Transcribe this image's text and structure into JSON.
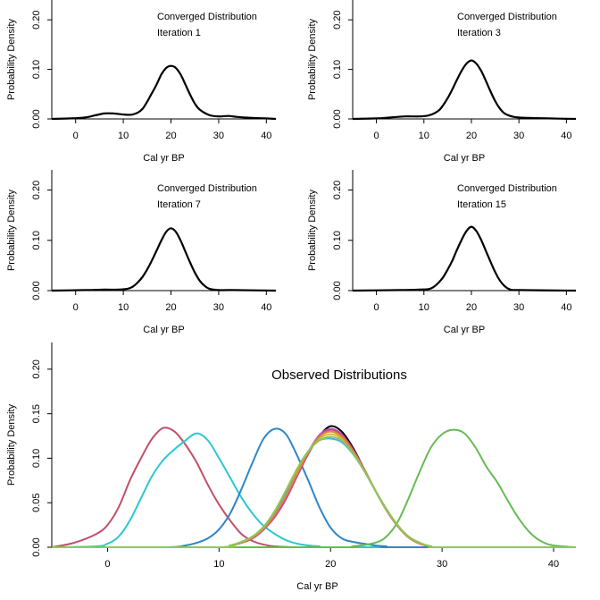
{
  "chart_data": [
    {
      "type": "line",
      "annotation": [
        "Converged Distribution",
        "Iteration 1"
      ],
      "xlabel": "Cal yr BP",
      "ylabel": "Probability Density",
      "xlim": [
        -5,
        42
      ],
      "ylim": [
        0,
        0.24
      ],
      "xticks": [
        "0",
        "10",
        "20",
        "30",
        "40"
      ],
      "yticks": [
        "0.00",
        "0.10",
        "0.20"
      ],
      "series": [
        {
          "color": "#000000",
          "x": [
            -5,
            -1,
            2,
            4,
            6,
            8,
            10,
            12,
            14,
            16,
            17,
            18,
            19,
            20,
            21,
            22,
            23,
            24,
            25,
            26,
            28,
            30,
            32,
            34,
            37,
            40,
            42
          ],
          "y": [
            0,
            0.001,
            0.003,
            0.007,
            0.011,
            0.011,
            0.009,
            0.009,
            0.02,
            0.052,
            0.07,
            0.09,
            0.103,
            0.107,
            0.103,
            0.09,
            0.07,
            0.049,
            0.031,
            0.019,
            0.008,
            0.005,
            0.006,
            0.004,
            0.002,
            0.001,
            0
          ]
        }
      ]
    },
    {
      "type": "line",
      "annotation": [
        "Converged Distribution",
        "Iteration 3"
      ],
      "xlabel": "Cal yr BP",
      "ylabel": "Probability Density",
      "xlim": [
        -5,
        42
      ],
      "ylim": [
        0,
        0.24
      ],
      "xticks": [
        "0",
        "10",
        "20",
        "30",
        "40"
      ],
      "yticks": [
        "0.00",
        "0.10",
        "0.20"
      ],
      "series": [
        {
          "color": "#000000",
          "x": [
            -5,
            0,
            3,
            6,
            9,
            11,
            13,
            14,
            15,
            16,
            17,
            18,
            19,
            20,
            21,
            22,
            23,
            24,
            25,
            26,
            27,
            29,
            32,
            36,
            42
          ],
          "y": [
            0,
            0.001,
            0.003,
            0.005,
            0.005,
            0.007,
            0.016,
            0.027,
            0.042,
            0.06,
            0.08,
            0.098,
            0.112,
            0.118,
            0.112,
            0.098,
            0.078,
            0.056,
            0.036,
            0.021,
            0.011,
            0.004,
            0.002,
            0.001,
            0
          ]
        }
      ]
    },
    {
      "type": "line",
      "annotation": [
        "Converged Distribution",
        "Iteration 7"
      ],
      "xlabel": "Cal yr BP",
      "ylabel": "Probability Density",
      "xlim": [
        -5,
        42
      ],
      "ylim": [
        0,
        0.24
      ],
      "xticks": [
        "0",
        "10",
        "20",
        "30",
        "40"
      ],
      "yticks": [
        "0.00",
        "0.10",
        "0.20"
      ],
      "series": [
        {
          "color": "#000000",
          "x": [
            -5,
            2,
            6,
            9,
            11,
            12,
            13,
            14,
            15,
            16,
            17,
            18,
            19,
            20,
            21,
            22,
            23,
            24,
            25,
            26,
            27,
            28,
            30,
            33,
            42
          ],
          "y": [
            0,
            0.001,
            0.002,
            0.002,
            0.004,
            0.008,
            0.016,
            0.027,
            0.042,
            0.06,
            0.08,
            0.1,
            0.117,
            0.124,
            0.117,
            0.1,
            0.078,
            0.056,
            0.036,
            0.02,
            0.01,
            0.004,
            0.001,
            0.001,
            0
          ]
        }
      ]
    },
    {
      "type": "line",
      "annotation": [
        "Converged Distribution",
        "Iteration 15"
      ],
      "xlabel": "Cal yr BP",
      "ylabel": "Probability Density",
      "xlim": [
        -5,
        42
      ],
      "ylim": [
        0,
        0.24
      ],
      "xticks": [
        "0",
        "10",
        "20",
        "30",
        "40"
      ],
      "yticks": [
        "0.00",
        "0.10",
        "0.20"
      ],
      "series": [
        {
          "color": "#000000",
          "x": [
            -5,
            5,
            9,
            11,
            12,
            13,
            14,
            15,
            16,
            17,
            18,
            19,
            20,
            21,
            22,
            23,
            24,
            25,
            26,
            27,
            28,
            30,
            42
          ],
          "y": [
            0,
            0.001,
            0.002,
            0.003,
            0.007,
            0.015,
            0.026,
            0.042,
            0.06,
            0.082,
            0.102,
            0.119,
            0.127,
            0.119,
            0.102,
            0.08,
            0.058,
            0.037,
            0.02,
            0.009,
            0.003,
            0.001,
            0
          ]
        }
      ]
    },
    {
      "type": "line",
      "annotation": [
        "Observed Distributions"
      ],
      "xlabel": "Cal yr BP",
      "ylabel": "Probability Density",
      "xlim": [
        -5,
        42
      ],
      "ylim": [
        0,
        0.23
      ],
      "xticks": [
        "0",
        "10",
        "20",
        "30",
        "40"
      ],
      "yticks": [
        "0.00",
        "0.05",
        "0.10",
        "0.15",
        "0.20"
      ],
      "series": [
        {
          "color": "#c0506a",
          "x": [
            -5,
            -3,
            -1,
            0,
            1,
            2,
            3,
            4,
            5,
            6,
            7,
            8,
            9,
            10,
            11,
            12,
            13,
            14,
            15,
            17,
            20
          ],
          "y": [
            0,
            0.005,
            0.015,
            0.025,
            0.045,
            0.075,
            0.1,
            0.122,
            0.134,
            0.13,
            0.115,
            0.095,
            0.07,
            0.048,
            0.03,
            0.015,
            0.007,
            0.003,
            0.001,
            0,
            0
          ]
        },
        {
          "color": "#2ac8d2",
          "x": [
            -5,
            -1,
            0,
            1,
            2,
            3,
            4,
            5,
            6,
            7,
            8,
            9,
            10,
            11,
            12,
            13,
            14,
            15,
            16,
            17,
            18,
            19,
            20,
            42
          ],
          "y": [
            0,
            0.001,
            0.004,
            0.012,
            0.03,
            0.055,
            0.08,
            0.098,
            0.11,
            0.12,
            0.128,
            0.12,
            0.1,
            0.078,
            0.056,
            0.038,
            0.024,
            0.015,
            0.008,
            0.004,
            0.002,
            0.001,
            0,
            0
          ]
        },
        {
          "color": "#2e86c8",
          "x": [
            -5,
            5,
            7,
            8,
            9,
            10,
            11,
            12,
            13,
            14,
            15,
            16,
            17,
            18,
            19,
            20,
            21,
            22,
            23,
            24,
            25,
            26,
            42
          ],
          "y": [
            0,
            0,
            0.002,
            0.005,
            0.01,
            0.02,
            0.038,
            0.065,
            0.095,
            0.122,
            0.133,
            0.127,
            0.103,
            0.075,
            0.045,
            0.022,
            0.01,
            0.006,
            0.004,
            0.002,
            0.001,
            0,
            0
          ]
        },
        {
          "color": "#66bb55",
          "x": [
            -5,
            20,
            22,
            24,
            25,
            26,
            27,
            28,
            29,
            30,
            31,
            32,
            33,
            34,
            35,
            36,
            37,
            38,
            39,
            40,
            42
          ],
          "y": [
            0,
            0,
            0.001,
            0.005,
            0.012,
            0.028,
            0.055,
            0.085,
            0.112,
            0.127,
            0.132,
            0.128,
            0.112,
            0.09,
            0.072,
            0.05,
            0.03,
            0.015,
            0.006,
            0.002,
            0
          ]
        },
        {
          "color": "#000000",
          "x": [
            -5,
            10,
            11,
            12,
            13,
            14,
            15,
            16,
            17,
            18,
            19,
            20,
            21,
            22,
            23,
            24,
            25,
            26,
            27,
            28,
            29,
            30,
            42
          ],
          "y": [
            0,
            0,
            0.002,
            0.005,
            0.01,
            0.02,
            0.035,
            0.055,
            0.08,
            0.105,
            0.125,
            0.136,
            0.13,
            0.112,
            0.088,
            0.064,
            0.042,
            0.024,
            0.011,
            0.004,
            0.001,
            0,
            0
          ]
        },
        {
          "color": "#a050c8",
          "x": [
            -5,
            10,
            11,
            12,
            13,
            14,
            15,
            16,
            17,
            18,
            19,
            20,
            21,
            22,
            23,
            24,
            25,
            26,
            27,
            28,
            29,
            30,
            42
          ],
          "y": [
            0,
            0,
            0.002,
            0.005,
            0.01,
            0.02,
            0.036,
            0.056,
            0.082,
            0.107,
            0.126,
            0.133,
            0.127,
            0.11,
            0.088,
            0.064,
            0.042,
            0.024,
            0.011,
            0.004,
            0.001,
            0,
            0
          ]
        },
        {
          "color": "#d04a8c",
          "x": [
            -5,
            10,
            11,
            12,
            13,
            14,
            15,
            16,
            17,
            18,
            19,
            20,
            21,
            22,
            23,
            24,
            25,
            26,
            27,
            28,
            29,
            30,
            42
          ],
          "y": [
            0,
            0,
            0.002,
            0.005,
            0.01,
            0.02,
            0.034,
            0.054,
            0.08,
            0.105,
            0.124,
            0.132,
            0.126,
            0.11,
            0.088,
            0.064,
            0.042,
            0.024,
            0.011,
            0.004,
            0.001,
            0,
            0
          ]
        },
        {
          "color": "#c8c040",
          "x": [
            -5,
            10,
            11,
            12,
            13,
            14,
            15,
            16,
            17,
            18,
            19,
            20,
            21,
            22,
            23,
            24,
            25,
            26,
            27,
            28,
            29,
            30,
            42
          ],
          "y": [
            0,
            0,
            0.002,
            0.006,
            0.012,
            0.022,
            0.04,
            0.06,
            0.085,
            0.107,
            0.122,
            0.127,
            0.122,
            0.107,
            0.087,
            0.064,
            0.043,
            0.025,
            0.012,
            0.005,
            0.001,
            0,
            0
          ]
        },
        {
          "color": "#e08a30",
          "x": [
            -5,
            10,
            11,
            12,
            13,
            14,
            15,
            16,
            17,
            18,
            19,
            20,
            21,
            22,
            23,
            24,
            25,
            26,
            27,
            28,
            29,
            30,
            42
          ],
          "y": [
            0,
            0,
            0.002,
            0.005,
            0.011,
            0.021,
            0.037,
            0.058,
            0.083,
            0.107,
            0.124,
            0.13,
            0.124,
            0.108,
            0.087,
            0.064,
            0.042,
            0.024,
            0.011,
            0.004,
            0.001,
            0,
            0
          ]
        },
        {
          "color": "#50b0d8",
          "x": [
            -5,
            10,
            11,
            12,
            13,
            14,
            15,
            16,
            17,
            18,
            19,
            20,
            21,
            22,
            23,
            24,
            25,
            26,
            27,
            28,
            29,
            30,
            42
          ],
          "y": [
            0,
            0,
            0.002,
            0.006,
            0.012,
            0.023,
            0.04,
            0.062,
            0.088,
            0.108,
            0.12,
            0.122,
            0.118,
            0.105,
            0.086,
            0.064,
            0.043,
            0.025,
            0.012,
            0.005,
            0.001,
            0,
            0
          ]
        },
        {
          "color": "#90c850",
          "x": [
            -5,
            10,
            11,
            12,
            13,
            14,
            15,
            16,
            17,
            18,
            19,
            20,
            21,
            22,
            23,
            24,
            25,
            26,
            27,
            28,
            29,
            30,
            42
          ],
          "y": [
            0,
            0,
            0.002,
            0.006,
            0.012,
            0.023,
            0.041,
            0.064,
            0.088,
            0.108,
            0.12,
            0.124,
            0.12,
            0.106,
            0.086,
            0.064,
            0.043,
            0.025,
            0.012,
            0.005,
            0.001,
            0,
            0
          ]
        }
      ]
    }
  ]
}
